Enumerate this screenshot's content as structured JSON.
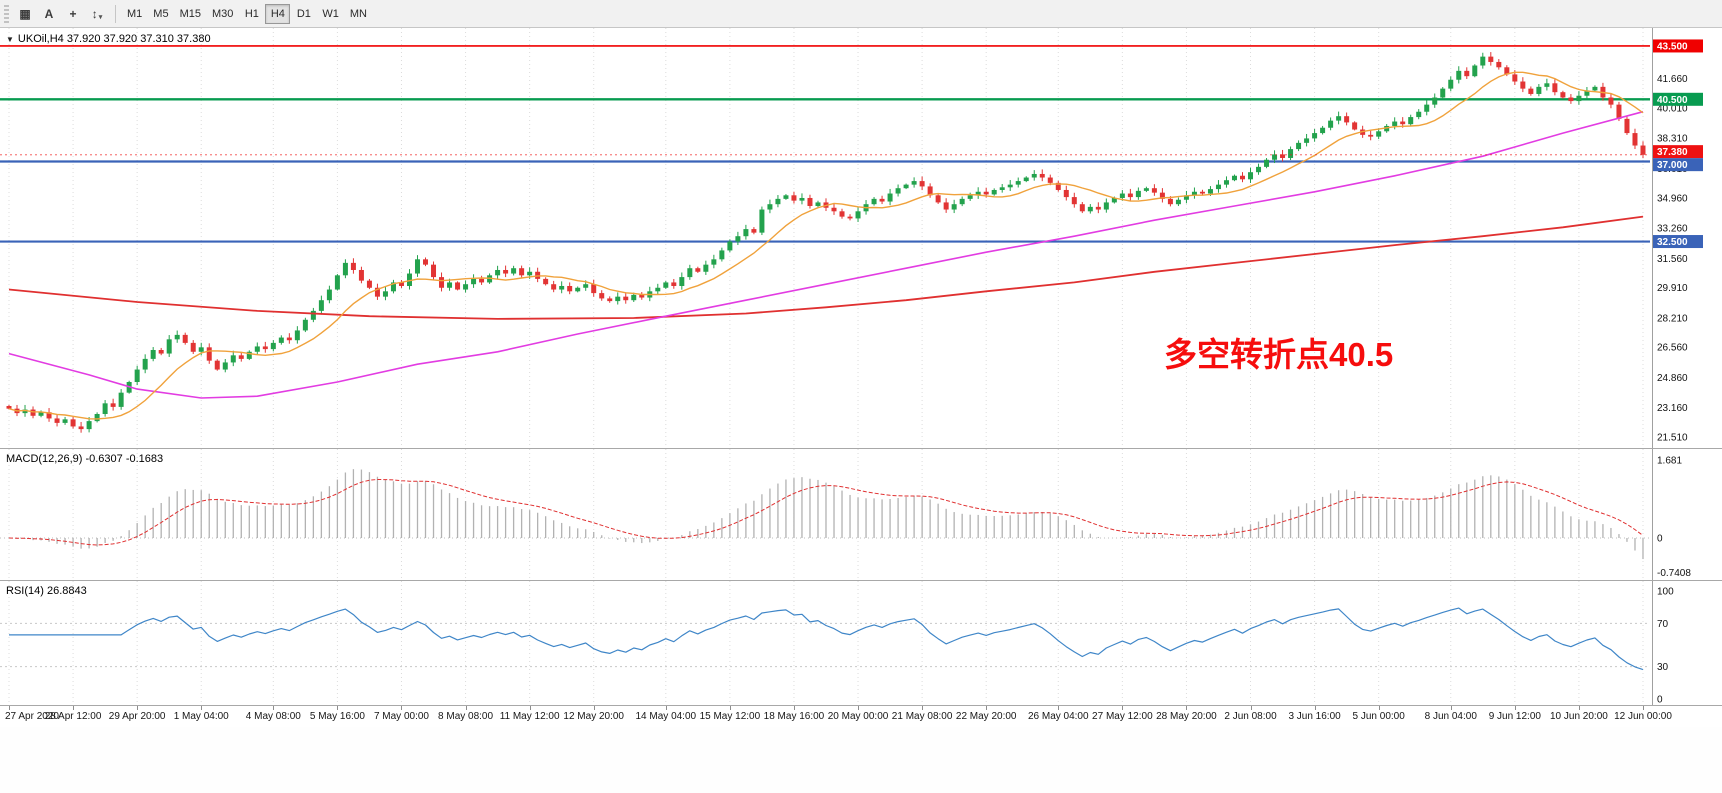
{
  "toolbar": {
    "icons": [
      {
        "name": "chart-window-icon",
        "glyph": "▦"
      },
      {
        "name": "text-tool-icon",
        "glyph": "A"
      },
      {
        "name": "crosshair-icon",
        "glyph": "+"
      },
      {
        "name": "arrow-tools-icon",
        "glyph": "↕",
        "caret": "▾"
      }
    ],
    "timeframes": [
      "M1",
      "M5",
      "M15",
      "M30",
      "H1",
      "H4",
      "D1",
      "W1",
      "MN"
    ],
    "active_timeframe": "H4"
  },
  "header": {
    "dropdown_glyph": "▼",
    "symbol_info": "UKOil,H4 37.920 37.920 37.310 37.380"
  },
  "annotation": {
    "text": "多空转折点40.5",
    "color": "#f60d0d"
  },
  "current_price": {
    "label": "37.380",
    "value": 37.38,
    "color": "#ee1111"
  },
  "levels": [
    {
      "label": "43.500",
      "value": 43.5,
      "color": "#f00000",
      "width": 1.6
    },
    {
      "label": "40.500",
      "value": 40.5,
      "color": "#089b50",
      "width": 2.4
    },
    {
      "label": "37.000",
      "value": 37.0,
      "color": "#3a63b8",
      "width": 2.2
    },
    {
      "label": "32.500",
      "value": 32.5,
      "color": "#3a63b8",
      "width": 2.2
    }
  ],
  "price_axis": {
    "ticks": [
      {
        "label": "41.660",
        "value": 41.66
      },
      {
        "label": "40.010",
        "value": 40.01
      },
      {
        "label": "38.310",
        "value": 38.31
      },
      {
        "label": "36.610",
        "value": 36.61
      },
      {
        "label": "34.960",
        "value": 34.96
      },
      {
        "label": "33.260",
        "value": 33.26
      },
      {
        "label": "31.560",
        "value": 31.56
      },
      {
        "label": "29.910",
        "value": 29.91
      },
      {
        "label": "28.210",
        "value": 28.21
      },
      {
        "label": "26.560",
        "value": 26.56
      },
      {
        "label": "24.860",
        "value": 24.86
      },
      {
        "label": "23.160",
        "value": 23.16
      },
      {
        "label": "21.510",
        "value": 21.51
      }
    ]
  },
  "chart_data": {
    "type": "candlestick",
    "symbol": "UKOil",
    "timeframe": "H4",
    "ohlc_header": {
      "open": "37.920",
      "high": "37.920",
      "low": "37.310",
      "close": "37.380"
    },
    "y_range": [
      20.89,
      44.51
    ],
    "closes": [
      23.1,
      22.85,
      23.05,
      22.7,
      22.9,
      22.55,
      22.3,
      22.5,
      22.1,
      21.95,
      22.4,
      22.8,
      23.4,
      23.2,
      24.0,
      24.6,
      25.3,
      25.9,
      26.4,
      26.2,
      27.0,
      27.25,
      26.8,
      26.3,
      26.55,
      25.8,
      25.3,
      25.7,
      26.1,
      25.9,
      26.3,
      26.6,
      26.45,
      26.8,
      27.1,
      26.95,
      27.5,
      28.1,
      28.6,
      29.2,
      29.8,
      30.6,
      31.3,
      30.9,
      30.3,
      29.9,
      29.4,
      29.7,
      30.2,
      30.0,
      30.7,
      31.5,
      31.2,
      30.5,
      29.9,
      30.2,
      29.8,
      30.1,
      30.4,
      30.2,
      30.6,
      30.9,
      30.7,
      31.0,
      30.6,
      30.8,
      30.4,
      30.1,
      29.8,
      30.0,
      29.7,
      29.9,
      30.1,
      29.6,
      29.3,
      29.15,
      29.4,
      29.2,
      29.5,
      29.35,
      29.7,
      29.9,
      30.2,
      30.0,
      30.5,
      31.0,
      30.8,
      31.2,
      31.5,
      32.0,
      32.5,
      32.8,
      33.2,
      33.0,
      34.3,
      34.6,
      34.9,
      35.1,
      34.8,
      34.95,
      34.5,
      34.7,
      34.4,
      34.2,
      33.9,
      33.8,
      34.2,
      34.6,
      34.9,
      34.75,
      35.2,
      35.5,
      35.7,
      35.9,
      35.6,
      35.1,
      34.7,
      34.3,
      34.6,
      34.9,
      35.1,
      35.3,
      35.15,
      35.4,
      35.55,
      35.7,
      35.9,
      36.1,
      36.3,
      36.1,
      35.8,
      35.4,
      35.0,
      34.6,
      34.2,
      34.45,
      34.3,
      34.7,
      34.95,
      35.2,
      35.0,
      35.35,
      35.5,
      35.25,
      34.9,
      34.6,
      34.85,
      35.1,
      35.3,
      35.2,
      35.45,
      35.7,
      35.95,
      36.2,
      36.0,
      36.4,
      36.7,
      37.1,
      37.4,
      37.2,
      37.7,
      38.05,
      38.3,
      38.6,
      38.9,
      39.3,
      39.55,
      39.2,
      38.8,
      38.5,
      38.4,
      38.7,
      39.0,
      39.25,
      39.1,
      39.5,
      39.8,
      40.2,
      40.6,
      41.1,
      41.6,
      42.1,
      41.8,
      42.4,
      42.9,
      42.6,
      42.3,
      41.9,
      41.5,
      41.1,
      40.8,
      41.2,
      41.4,
      40.9,
      40.6,
      40.4,
      40.7,
      41.0,
      41.2,
      40.6,
      40.2,
      39.4,
      38.6,
      37.9,
      37.38
    ],
    "time_labels": [
      "27 Apr 2020",
      "28 Apr 12:00",
      "29 Apr 20:00",
      "1 May 04:00",
      "4 May 08:00",
      "5 May 16:00",
      "7 May 00:00",
      "8 May 08:00",
      "11 May 12:00",
      "12 May 20:00",
      "14 May 04:00",
      "15 May 12:00",
      "18 May 16:00",
      "20 May 00:00",
      "21 May 08:00",
      "22 May 20:00",
      "26 May 04:00",
      "27 May 12:00",
      "28 May 20:00",
      "2 Jun 08:00",
      "3 Jun 16:00",
      "5 Jun 00:00",
      "8 Jun 04:00",
      "9 Jun 12:00",
      "10 Jun 20:00",
      "12 Jun 00:00"
    ],
    "overlays": {
      "ma_fast": {
        "color": "#f0a23c",
        "period": 10
      },
      "ma_mid": {
        "color": "#e23ce2",
        "points": {
          "x": [
            0,
            0.05,
            0.08,
            0.12,
            0.15,
            0.2,
            0.25,
            0.3,
            0.35,
            0.4,
            0.45,
            0.5,
            0.55,
            0.6,
            0.65,
            0.7,
            0.75,
            0.8,
            0.85,
            0.9,
            0.95,
            1.0
          ],
          "y": [
            26.2,
            25.0,
            24.2,
            23.7,
            23.8,
            24.6,
            25.6,
            26.3,
            27.3,
            28.3,
            29.2,
            30.1,
            31.0,
            31.9,
            32.8,
            33.7,
            34.5,
            35.3,
            36.2,
            37.3,
            38.6,
            39.8
          ]
        }
      },
      "ma_slow": {
        "color": "#e03030",
        "points": {
          "x": [
            0,
            0.08,
            0.15,
            0.22,
            0.3,
            0.38,
            0.45,
            0.5,
            0.55,
            0.6,
            0.65,
            0.7,
            0.75,
            0.8,
            0.85,
            0.9,
            0.95,
            1.0
          ],
          "y": [
            29.8,
            29.1,
            28.6,
            28.3,
            28.15,
            28.2,
            28.45,
            28.8,
            29.2,
            29.7,
            30.2,
            30.8,
            31.3,
            31.8,
            32.3,
            32.8,
            33.3,
            33.9
          ]
        }
      }
    },
    "indicators": [
      {
        "name": "MACD",
        "label": "MACD(12,26,9) -0.6307 -0.1683",
        "params": [
          12,
          26,
          9
        ],
        "values": [
          -0.6307,
          -0.1683
        ],
        "axis": [
          {
            "label": "1.681",
            "value": 1.681
          },
          {
            "label": "0",
            "value": 0
          },
          {
            "label": "-0.7408",
            "value": -0.7408
          }
        ],
        "histogram_color": "#b2b2b2",
        "signal_color": "#e03030"
      },
      {
        "name": "RSI",
        "label": "RSI(14) 26.8843",
        "period": 14,
        "value": 26.8843,
        "axis": [
          {
            "label": "100",
            "value": 100
          },
          {
            "label": "70",
            "value": 70
          },
          {
            "label": "30",
            "value": 30
          },
          {
            "label": "0",
            "value": 0
          }
        ],
        "levels": [
          70,
          30
        ],
        "line_color": "#3f86c8"
      }
    ]
  },
  "colors": {
    "bull": "#23a24d",
    "bear": "#e23434",
    "grid": "#dcdcdc",
    "axis_text": "#111111",
    "panel_border": "#a8a8a8"
  }
}
